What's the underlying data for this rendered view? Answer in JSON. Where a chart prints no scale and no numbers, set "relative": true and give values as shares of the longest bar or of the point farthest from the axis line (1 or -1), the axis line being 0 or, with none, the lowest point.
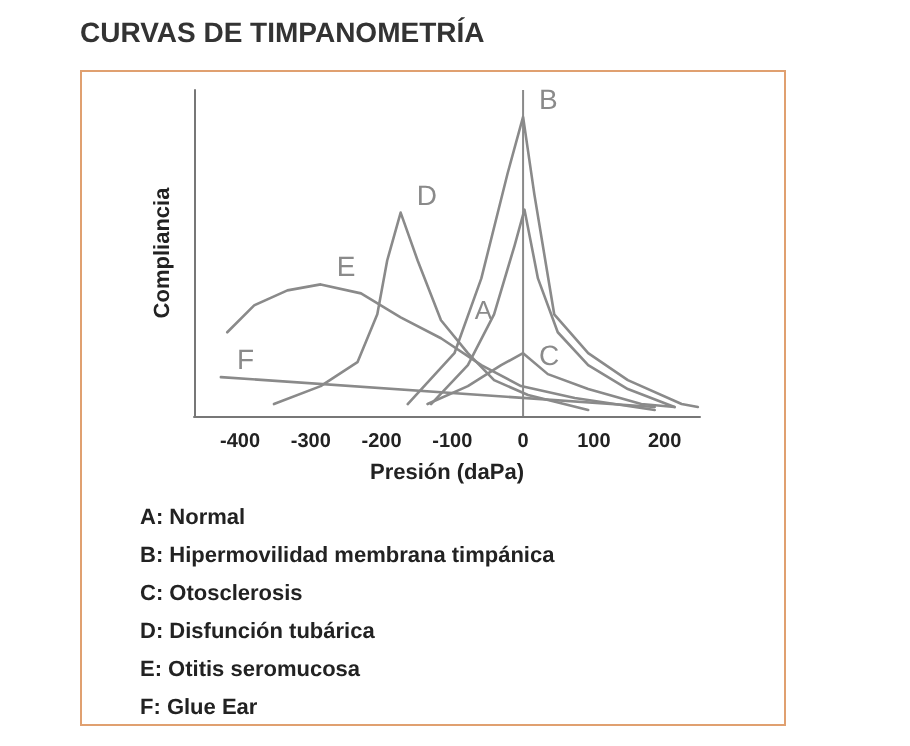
{
  "chart_data": {
    "type": "line",
    "title": "CURVAS DE TIMPANOMETRÍA",
    "xlabel": "Presión (daPa)",
    "ylabel": "Compliancia",
    "relative": true,
    "marker": "none",
    "line_style": "solid",
    "grid": false,
    "xlim": [
      -465,
      250
    ],
    "xticks": [
      -400,
      -300,
      -200,
      -100,
      0,
      100,
      200
    ],
    "ref_lines": [
      {
        "axis": "x",
        "value": 0,
        "color": "#8a8a8a"
      }
    ],
    "series": [
      {
        "name": "A",
        "color": "#8a8a8a",
        "x": [
          -130,
          -78,
          -41,
          -12,
          2,
          21,
          49,
          92,
          148,
          214
        ],
        "values": [
          0.04,
          0.17,
          0.34,
          0.57,
          0.69,
          0.46,
          0.28,
          0.17,
          0.09,
          0.03
        ]
      },
      {
        "name": "B",
        "color": "#8a8a8a",
        "x": [
          -163,
          -97,
          -59,
          -22,
          0,
          16,
          44,
          92,
          148,
          224,
          247
        ],
        "values": [
          0.04,
          0.21,
          0.46,
          0.81,
          1,
          0.74,
          0.34,
          0.21,
          0.12,
          0.04,
          0.03
        ]
      },
      {
        "name": "C",
        "color": "#8a8a8a",
        "x": [
          -135,
          -78,
          -31,
          0,
          35,
          92,
          167,
          214
        ],
        "values": [
          0.04,
          0.1,
          0.17,
          0.21,
          0.14,
          0.09,
          0.04,
          0.03
        ]
      },
      {
        "name": "D",
        "color": "#8a8a8a",
        "x": [
          -352,
          -286,
          -234,
          -206,
          -192,
          -173,
          -149,
          -116,
          -78,
          -41,
          7,
          92
        ],
        "values": [
          0.04,
          0.1,
          0.18,
          0.34,
          0.52,
          0.68,
          0.52,
          0.32,
          0.21,
          0.12,
          0.07,
          0.02
        ]
      },
      {
        "name": "E",
        "color": "#8a8a8a",
        "x": [
          -418,
          -380,
          -333,
          -286,
          -229,
          -173,
          -116,
          -59,
          -3,
          73,
          186
        ],
        "values": [
          0.28,
          0.37,
          0.42,
          0.44,
          0.41,
          0.33,
          0.26,
          0.17,
          0.1,
          0.06,
          0.02
        ]
      },
      {
        "name": "F",
        "color": "#8a8a8a",
        "x": [
          -427,
          186
        ],
        "values": [
          0.13,
          0.03
        ]
      }
    ],
    "annotations": [
      "A: Normal",
      "B: Hipermovilidad membrana timpánica",
      "C: Otosclerosis",
      "D: Disfunción tubárica",
      "E: Otitis seromucosa",
      "F: Glue Ear"
    ]
  }
}
